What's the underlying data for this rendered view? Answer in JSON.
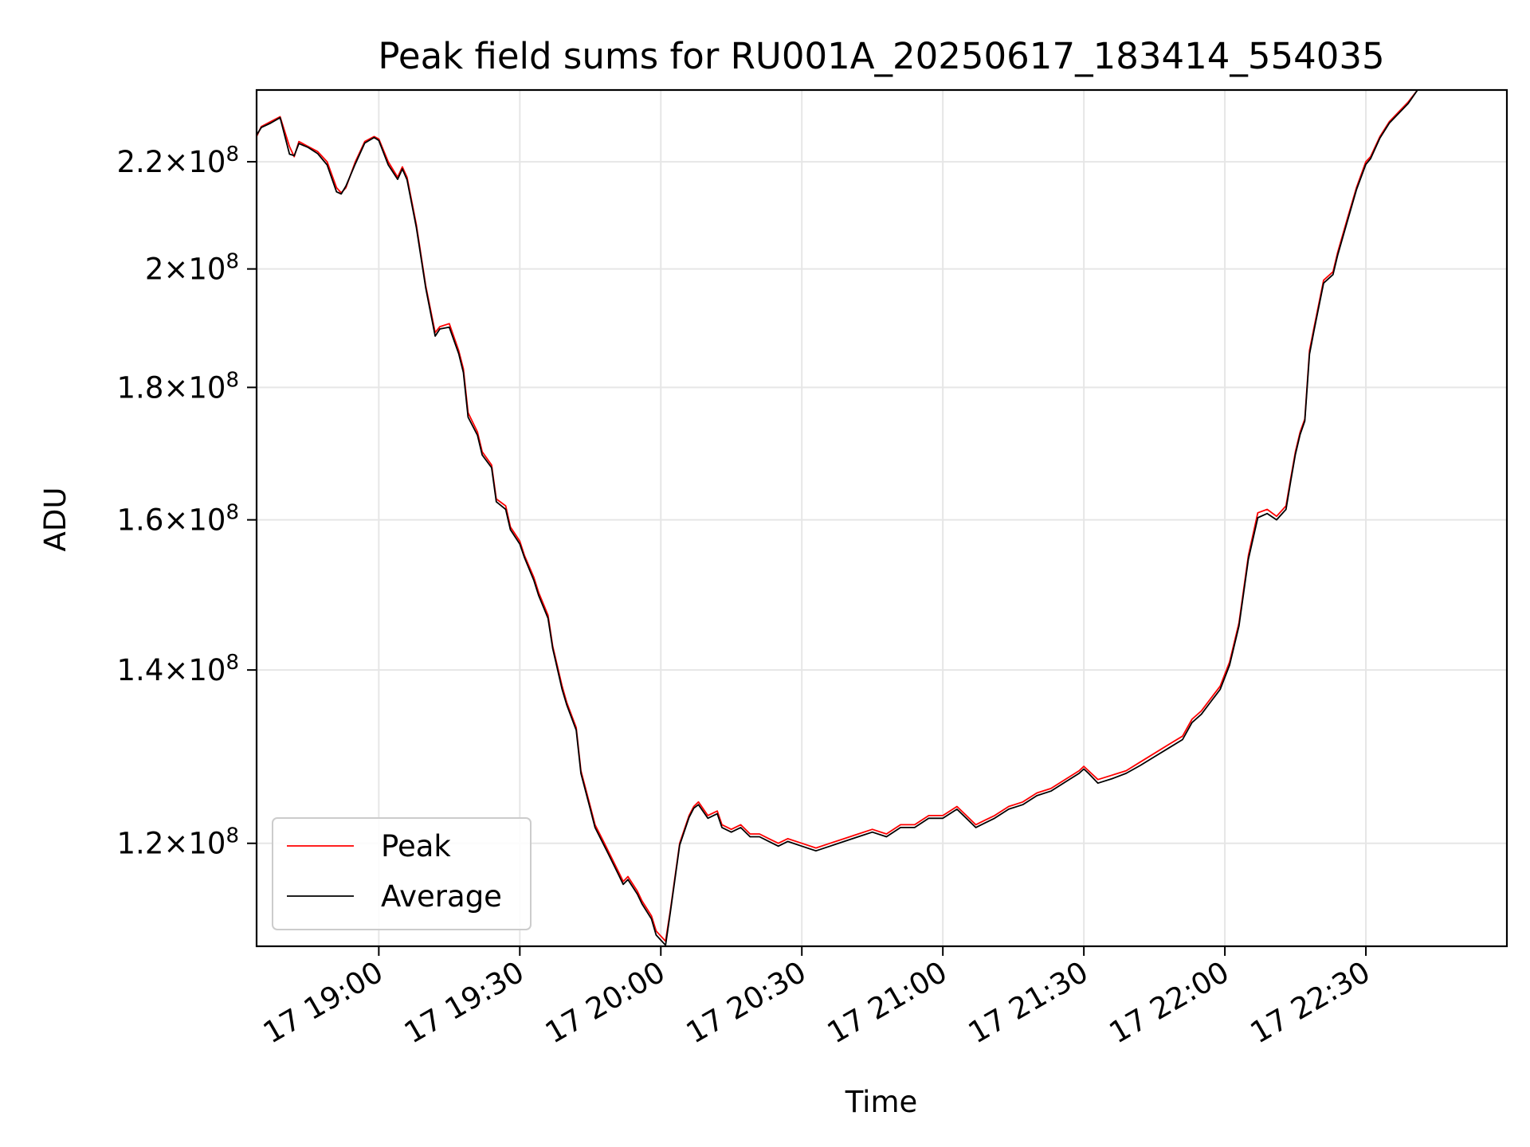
{
  "chart_data": {
    "type": "line",
    "title": "Peak field sums for RU001A_20250617_183414_554035",
    "xlabel": "Time",
    "ylabel": "ADU",
    "x_ticks": [
      "17 19:00",
      "17 19:30",
      "17 20:00",
      "17 20:30",
      "17 21:00",
      "17 21:30",
      "17 22:00",
      "17 22:30"
    ],
    "y_ticks": [
      {
        "value": 120000000,
        "mantissa": "1.2",
        "base": "10",
        "exp": "8"
      },
      {
        "value": 140000000,
        "mantissa": "1.4",
        "base": "10",
        "exp": "8"
      },
      {
        "value": 160000000,
        "mantissa": "1.6",
        "base": "10",
        "exp": "8"
      },
      {
        "value": 180000000,
        "mantissa": "1.8",
        "base": "10",
        "exp": "8"
      },
      {
        "value": 200000000,
        "mantissa": "2",
        "base": "10",
        "exp": "8"
      },
      {
        "value": 220000000,
        "mantissa": "2.2",
        "base": "10",
        "exp": "8"
      }
    ],
    "xlim": [
      "18:34",
      "23:00"
    ],
    "ylim": [
      109500000,
      234500000
    ],
    "y_scale": "log",
    "grid": true,
    "legend": {
      "position": "lower-left",
      "entries": [
        "Peak",
        "Average"
      ]
    },
    "series": [
      {
        "name": "Peak",
        "color": "#ff0000",
        "x": [
          "18:34",
          "18:35",
          "18:37",
          "18:39",
          "18:41",
          "18:42",
          "18:43",
          "18:45",
          "18:47",
          "18:49",
          "18:51",
          "18:52",
          "18:53",
          "18:55",
          "18:57",
          "18:59",
          "19:00",
          "19:02",
          "19:04",
          "19:05",
          "19:06",
          "19:08",
          "19:10",
          "19:12",
          "19:13",
          "19:15",
          "19:17",
          "19:18",
          "19:19",
          "19:21",
          "19:22",
          "19:24",
          "19:25",
          "19:27",
          "19:28",
          "19:30",
          "19:31",
          "19:33",
          "19:34",
          "19:36",
          "19:37",
          "19:39",
          "19:40",
          "19:42",
          "19:43",
          "19:45",
          "19:46",
          "19:48",
          "19:49",
          "19:51",
          "19:52",
          "19:53",
          "19:55",
          "19:56",
          "19:58",
          "19:59",
          "20:01",
          "20:02",
          "20:04",
          "20:06",
          "20:07",
          "20:08",
          "20:10",
          "20:12",
          "20:13",
          "20:15",
          "20:17",
          "20:19",
          "20:21",
          "20:23",
          "20:25",
          "20:27",
          "20:30",
          "20:33",
          "20:36",
          "20:39",
          "20:42",
          "20:45",
          "20:48",
          "20:51",
          "20:54",
          "20:57",
          "21:00",
          "21:03",
          "21:05",
          "21:07",
          "21:09",
          "21:11",
          "21:14",
          "21:17",
          "21:20",
          "21:23",
          "21:26",
          "21:29",
          "21:30",
          "21:31",
          "21:33",
          "21:36",
          "21:39",
          "21:42",
          "21:45",
          "21:48",
          "21:51",
          "21:53",
          "21:55",
          "21:57",
          "21:59",
          "22:01",
          "22:03",
          "22:05",
          "22:07",
          "22:09",
          "22:11",
          "22:13",
          "22:14",
          "22:15",
          "22:16",
          "22:17",
          "22:18",
          "22:19",
          "22:21",
          "22:23",
          "22:24",
          "22:26",
          "22:28",
          "22:30",
          "22:31",
          "22:33",
          "22:35",
          "22:37",
          "22:39",
          "22:41"
        ],
        "values": [
          225000000,
          227000000,
          228000000,
          229000000,
          223000000,
          221000000,
          224000000,
          223000000,
          222000000,
          220000000,
          215000000,
          214000000,
          215000000,
          220000000,
          224000000,
          225000000,
          224500000,
          220000000,
          217000000,
          219000000,
          217000000,
          208000000,
          197000000,
          189000000,
          190000000,
          190500000,
          186000000,
          183000000,
          176000000,
          173000000,
          170000000,
          168000000,
          163000000,
          162000000,
          159000000,
          157000000,
          155000000,
          152000000,
          150000000,
          147000000,
          143000000,
          138000000,
          136000000,
          133000000,
          128000000,
          124000000,
          122000000,
          120000000,
          119000000,
          117000000,
          116000000,
          116500000,
          115000000,
          114000000,
          112500000,
          111000000,
          110000000,
          113000000,
          120000000,
          123000000,
          124000000,
          124500000,
          123000000,
          123500000,
          122000000,
          121500000,
          122000000,
          121000000,
          121000000,
          120500000,
          120000000,
          120500000,
          120000000,
          119500000,
          120000000,
          120500000,
          121000000,
          121500000,
          121000000,
          122000000,
          122000000,
          123000000,
          123000000,
          124000000,
          123000000,
          122000000,
          122500000,
          123000000,
          124000000,
          124500000,
          125500000,
          126000000,
          127000000,
          128000000,
          128500000,
          128000000,
          127000000,
          127500000,
          128000000,
          129000000,
          130000000,
          131000000,
          132000000,
          134000000,
          135000000,
          136500000,
          138000000,
          141000000,
          146000000,
          155000000,
          161000000,
          161500000,
          160500000,
          162000000,
          166000000,
          170000000,
          173000000,
          175000000,
          186000000,
          190000000,
          198000000,
          199500000,
          203000000,
          209000000,
          215000000,
          220000000,
          221000000,
          225000000,
          228000000,
          230000000,
          232000000,
          234500000
        ]
      },
      {
        "name": "Average",
        "color": "#000000",
        "x": [
          "18:34",
          "18:35",
          "18:37",
          "18:39",
          "18:41",
          "18:42",
          "18:43",
          "18:45",
          "18:47",
          "18:49",
          "18:51",
          "18:52",
          "18:53",
          "18:55",
          "18:57",
          "18:59",
          "19:00",
          "19:02",
          "19:04",
          "19:05",
          "19:06",
          "19:08",
          "19:10",
          "19:12",
          "19:13",
          "19:15",
          "19:17",
          "19:18",
          "19:19",
          "19:21",
          "19:22",
          "19:24",
          "19:25",
          "19:27",
          "19:28",
          "19:30",
          "19:31",
          "19:33",
          "19:34",
          "19:36",
          "19:37",
          "19:39",
          "19:40",
          "19:42",
          "19:43",
          "19:45",
          "19:46",
          "19:48",
          "19:49",
          "19:51",
          "19:52",
          "19:53",
          "19:55",
          "19:56",
          "19:58",
          "19:59",
          "20:01",
          "20:02",
          "20:04",
          "20:06",
          "20:07",
          "20:08",
          "20:10",
          "20:12",
          "20:13",
          "20:15",
          "20:17",
          "20:19",
          "20:21",
          "20:23",
          "20:25",
          "20:27",
          "20:30",
          "20:33",
          "20:36",
          "20:39",
          "20:42",
          "20:45",
          "20:48",
          "20:51",
          "20:54",
          "20:57",
          "21:00",
          "21:03",
          "21:05",
          "21:07",
          "21:09",
          "21:11",
          "21:14",
          "21:17",
          "21:20",
          "21:23",
          "21:26",
          "21:29",
          "21:30",
          "21:31",
          "21:33",
          "21:36",
          "21:39",
          "21:42",
          "21:45",
          "21:48",
          "21:51",
          "21:53",
          "21:55",
          "21:57",
          "21:59",
          "22:01",
          "22:03",
          "22:05",
          "22:07",
          "22:09",
          "22:11",
          "22:13",
          "22:14",
          "22:15",
          "22:16",
          "22:17",
          "22:18",
          "22:19",
          "22:21",
          "22:23",
          "22:24",
          "22:26",
          "22:28",
          "22:30",
          "22:31",
          "22:33",
          "22:35",
          "22:37",
          "22:39",
          "22:41"
        ],
        "values": [
          225300000,
          226800000,
          227700000,
          228800000,
          221500000,
          221200000,
          223600000,
          222800000,
          221600000,
          219400000,
          214200000,
          213800000,
          215300000,
          219600000,
          223700000,
          224800000,
          224200000,
          219400000,
          216600000,
          218600000,
          216500000,
          207500000,
          196600000,
          188400000,
          189600000,
          189900000,
          185500000,
          182400000,
          175300000,
          172500000,
          169500000,
          167600000,
          162600000,
          161500000,
          158600000,
          156600000,
          154700000,
          151600000,
          149600000,
          146600000,
          142700000,
          137600000,
          135700000,
          132700000,
          127700000,
          123700000,
          121700000,
          119700000,
          118700000,
          116700000,
          115700000,
          116200000,
          114700000,
          113700000,
          112200000,
          110600000,
          109600000,
          112800000,
          119800000,
          122800000,
          123800000,
          124200000,
          122700000,
          123200000,
          121700000,
          121200000,
          121700000,
          120700000,
          120700000,
          120200000,
          119700000,
          120200000,
          119700000,
          119200000,
          119700000,
          120200000,
          120700000,
          121200000,
          120700000,
          121700000,
          121700000,
          122700000,
          122700000,
          123700000,
          122700000,
          121700000,
          122200000,
          122700000,
          123700000,
          124200000,
          125200000,
          125700000,
          126700000,
          127700000,
          128200000,
          127700000,
          126600000,
          127100000,
          127700000,
          128600000,
          129600000,
          130600000,
          131600000,
          133600000,
          134600000,
          136100000,
          137600000,
          140600000,
          145600000,
          154500000,
          160300000,
          160900000,
          160000000,
          161500000,
          165600000,
          169600000,
          172600000,
          174700000,
          185400000,
          189500000,
          197500000,
          199000000,
          202500000,
          208500000,
          214600000,
          219500000,
          220600000,
          224700000,
          227700000,
          229700000,
          231700000,
          234500000
        ]
      }
    ]
  }
}
